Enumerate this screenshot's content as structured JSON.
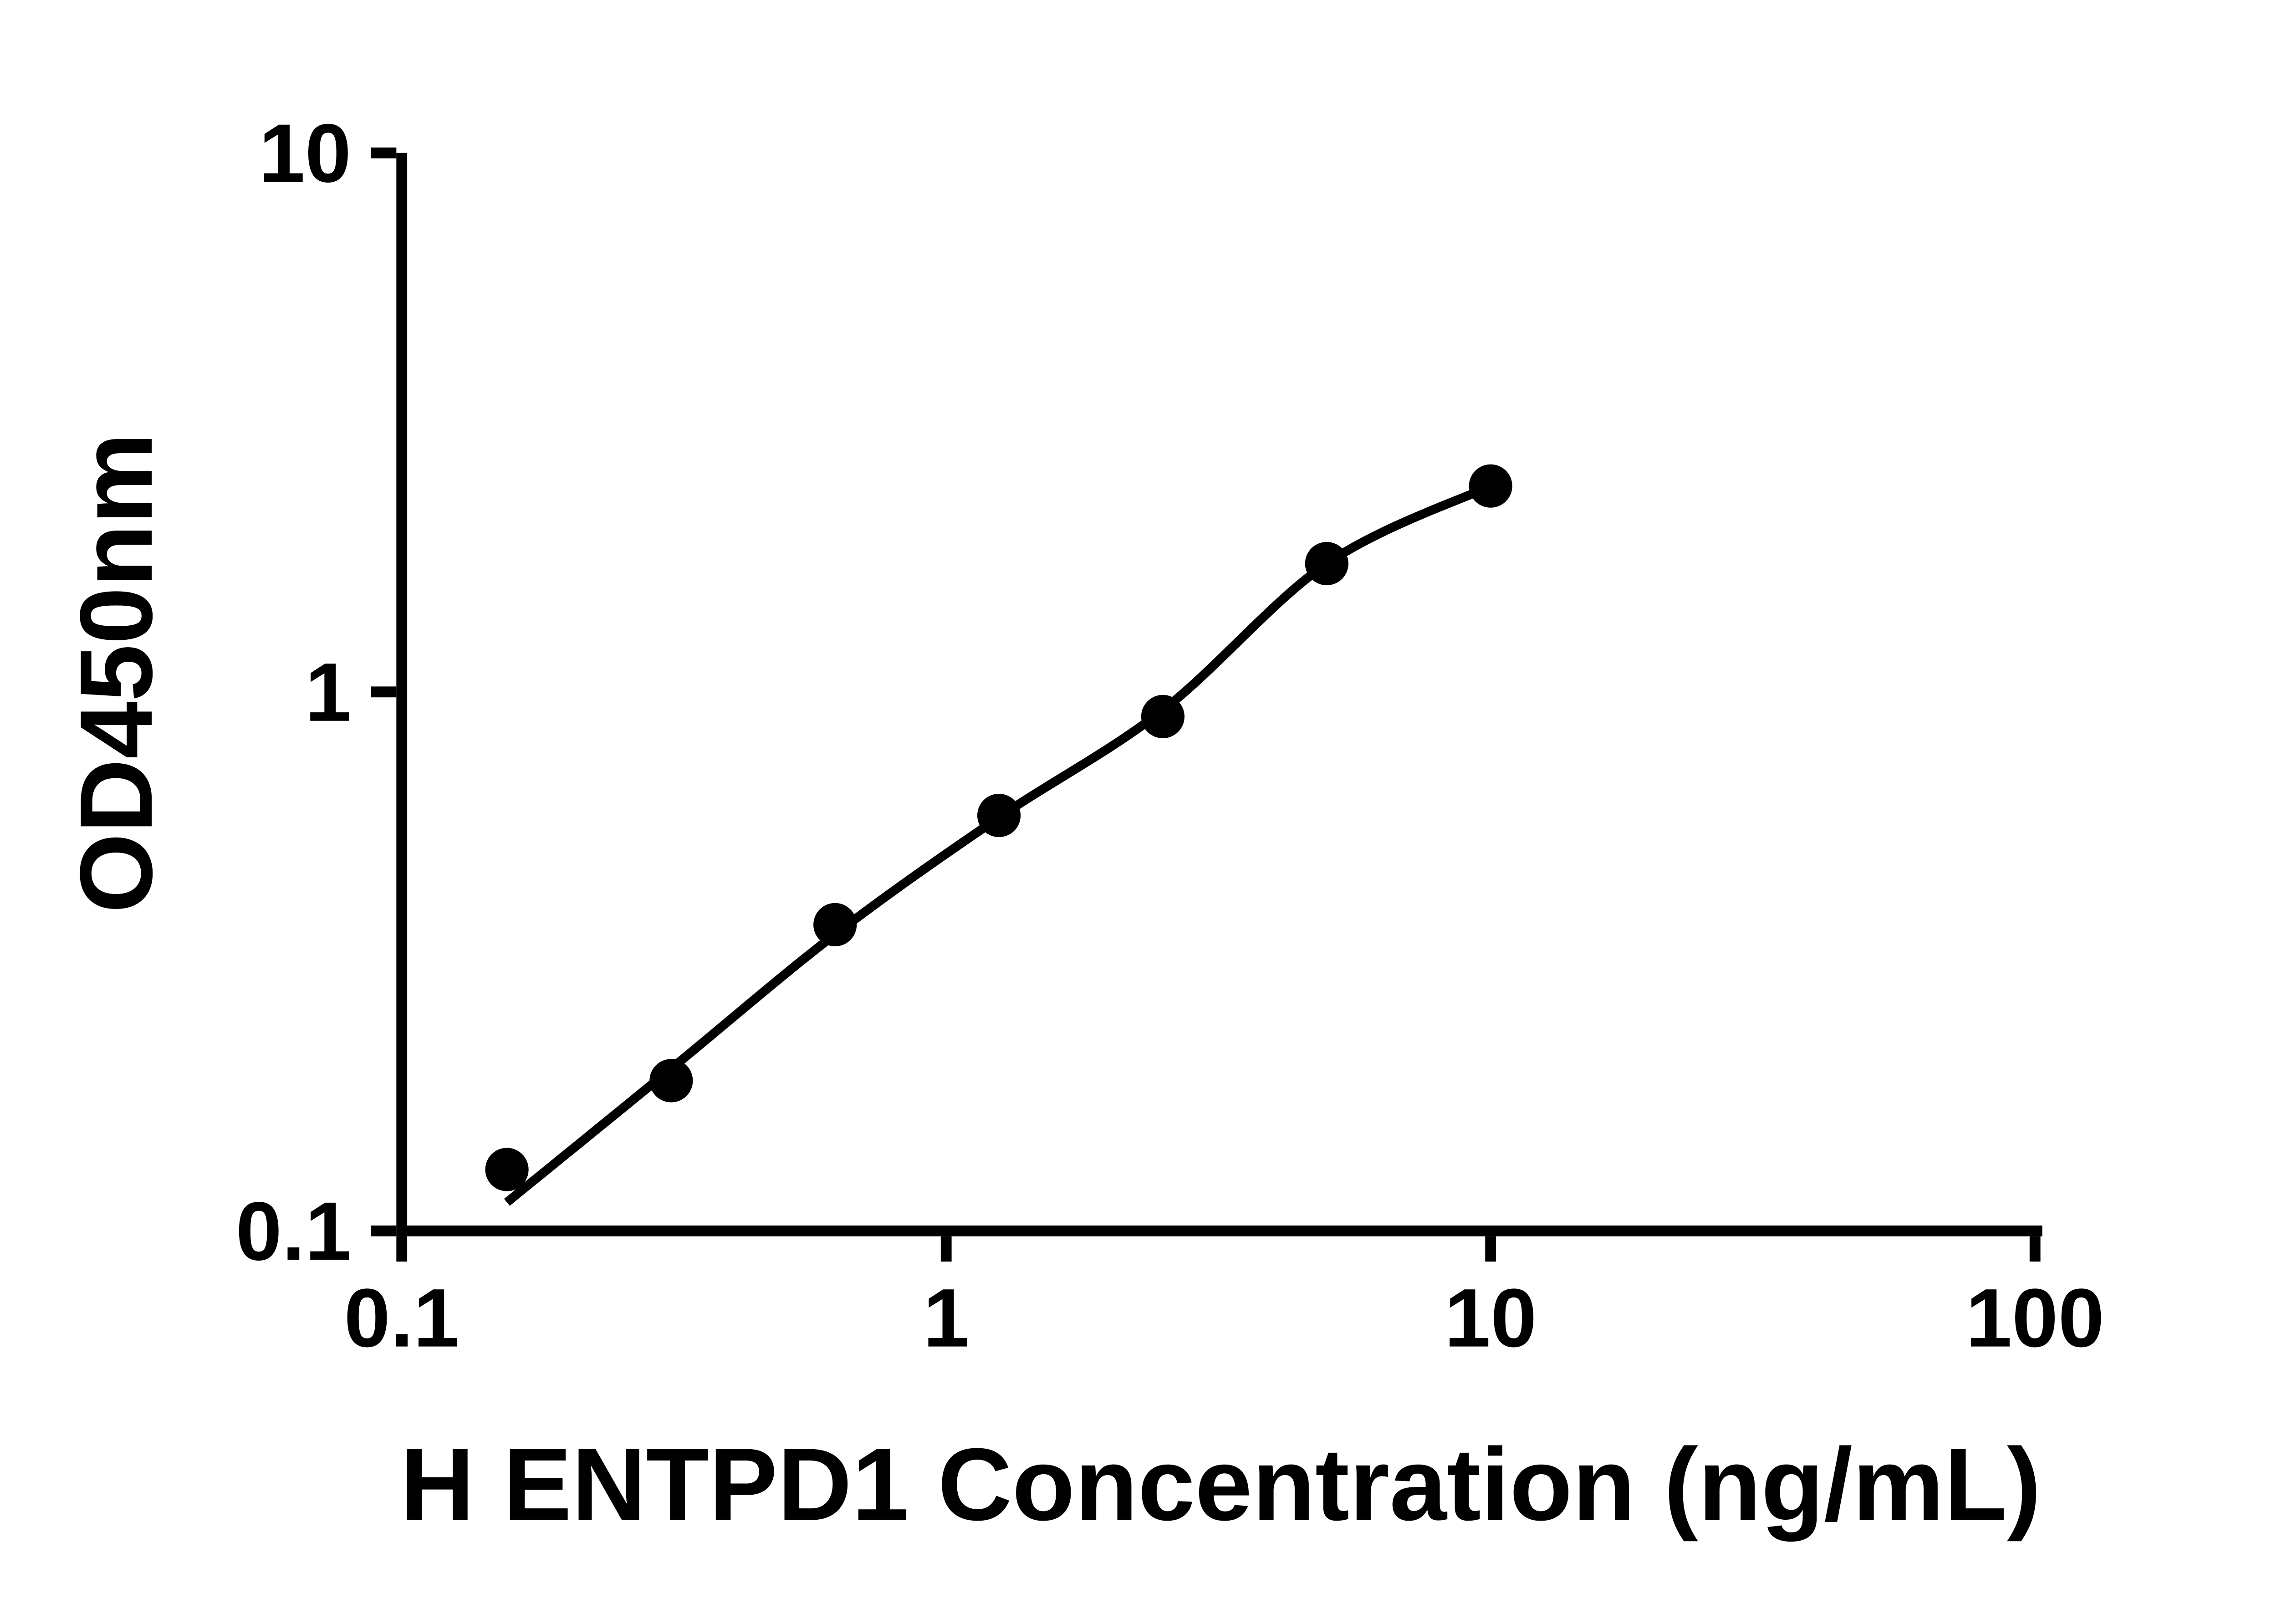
{
  "chart_data": {
    "type": "scatter",
    "title": "",
    "xlabel": "H ENTPD1 Concentration (ng/mL)",
    "ylabel": "OD450nm",
    "x_scale": "log",
    "y_scale": "log",
    "xlim": [
      0.1,
      100
    ],
    "ylim": [
      0.1,
      10
    ],
    "x_ticks": [
      0.1,
      1,
      10,
      100
    ],
    "x_tick_labels": [
      "0.1",
      "1",
      "10",
      "100"
    ],
    "y_ticks": [
      0.1,
      1,
      10
    ],
    "y_tick_labels": [
      "0.1",
      "1",
      "10"
    ],
    "grid": false,
    "legend": "none",
    "series": [
      {
        "name": "standard-points",
        "type": "scatter",
        "marker": "filled-circle",
        "x": [
          0.156,
          0.3125,
          0.625,
          1.25,
          2.5,
          5,
          10
        ],
        "y": [
          0.13,
          0.19,
          0.37,
          0.59,
          0.9,
          1.73,
          2.41
        ]
      },
      {
        "name": "4pl-fit-curve",
        "type": "line",
        "x": [
          0.156,
          0.3125,
          0.625,
          1.25,
          2.5,
          5,
          10
        ],
        "y": [
          0.113,
          0.2,
          0.355,
          0.585,
          0.925,
          1.73,
          2.41
        ]
      }
    ],
    "colors": {
      "points": "#000000",
      "curve": "#000000",
      "axes": "#000000",
      "text": "#000000",
      "background": "#ffffff"
    }
  }
}
